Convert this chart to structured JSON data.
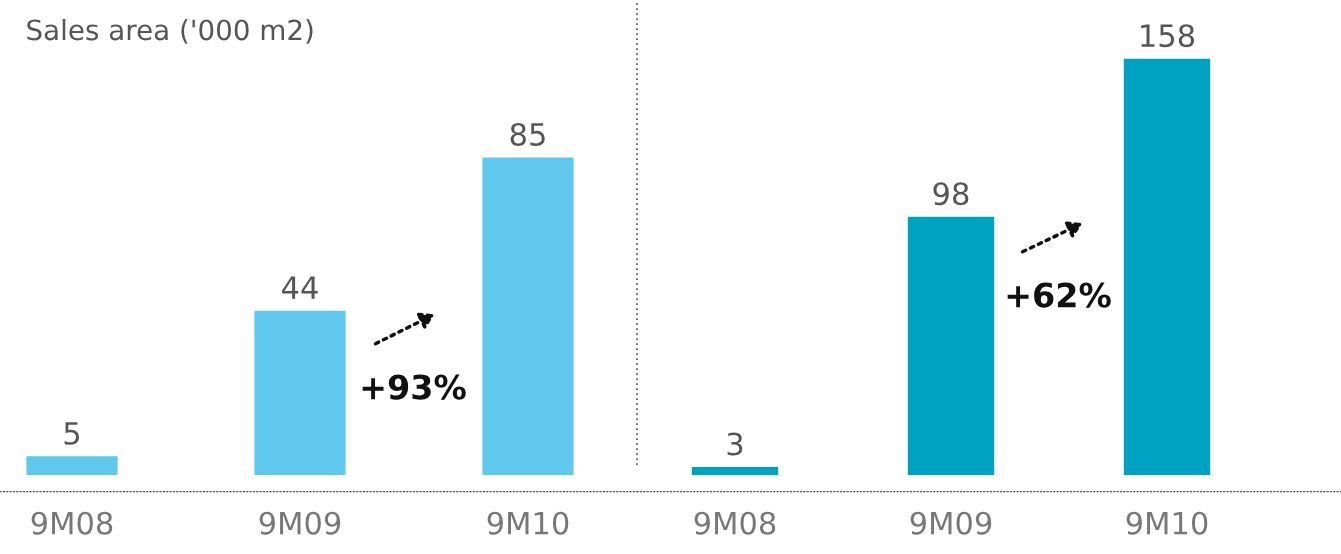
{
  "chart_data": [
    {
      "type": "bar",
      "title": "Sales area ('000 m2)",
      "categories": [
        "9M08",
        "9M09",
        "9M10"
      ],
      "values": [
        5,
        44,
        85
      ],
      "color": "#5fc8ec",
      "data_labels": true,
      "annotations": [
        "+93%"
      ]
    },
    {
      "type": "bar",
      "categories": [
        "9M08",
        "9M09",
        "9M10"
      ],
      "values": [
        3,
        98,
        158
      ],
      "color": "#00a2c2",
      "data_labels": true,
      "annotations": [
        "+62%"
      ]
    }
  ]
}
